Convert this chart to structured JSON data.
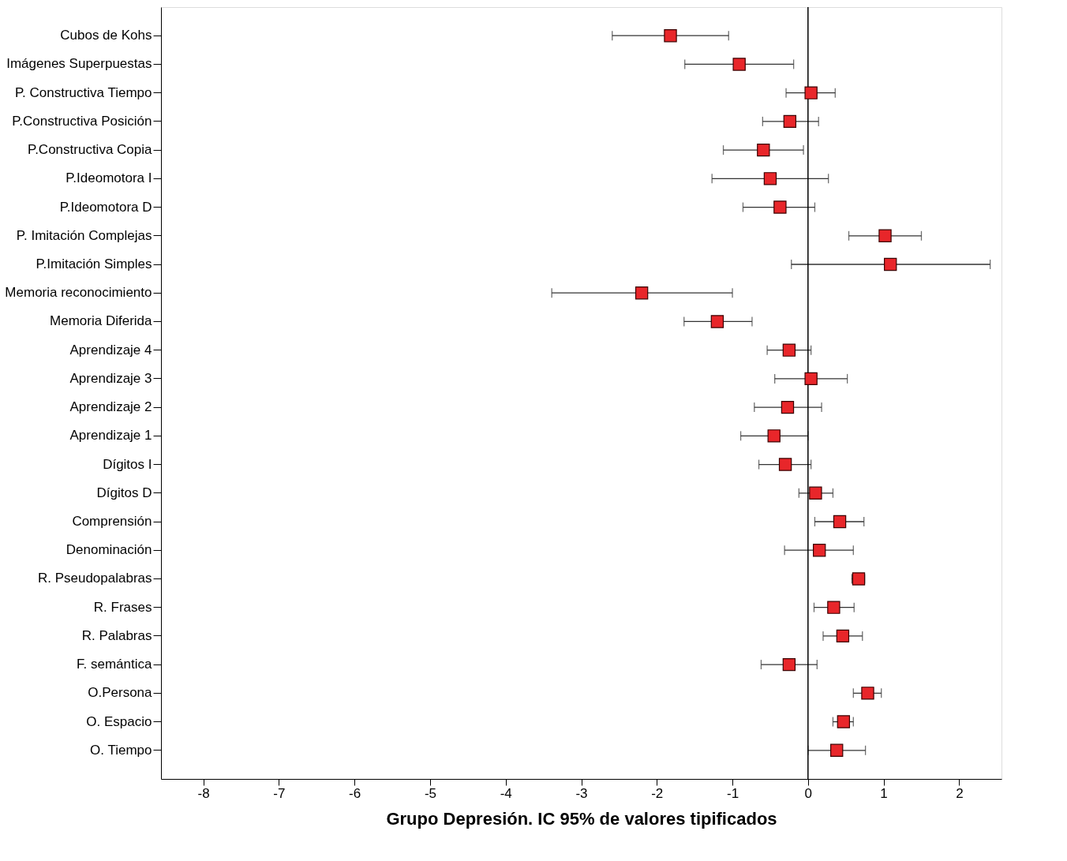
{
  "chart_data": {
    "type": "scatter",
    "orientation": "horizontal",
    "xlabel": "Grupo Depresión. IC 95% de valores tipificados",
    "categories": [
      "Cubos de Kohs",
      "Imágenes Superpuestas",
      "P. Constructiva Tiempo",
      "P.Constructiva Posición",
      "P.Constructiva Copia",
      "P.Ideomotora I",
      "P.Ideomotora D",
      "P. Imitación Complejas",
      "P.Imitación Simples",
      "Memoria reconocimiento",
      "Memoria Diferida",
      "Aprendizaje 4",
      "Aprendizaje 3",
      "Aprendizaje 2",
      "Aprendizaje 1",
      "Dígitos I",
      "Dígitos D",
      "Comprensión",
      "Denominación",
      "R. Pseudopalabras",
      "R. Frases",
      "R. Palabras",
      "F. semántica",
      "O.Persona",
      "O. Espacio",
      "O. Tiempo"
    ],
    "values": [
      -1.82,
      -0.91,
      0.04,
      -0.24,
      -0.59,
      -0.5,
      -0.37,
      1.02,
      1.09,
      -2.2,
      -1.2,
      -0.25,
      0.04,
      -0.27,
      -0.45,
      -0.3,
      0.1,
      0.42,
      0.15,
      0.67,
      0.34,
      0.46,
      -0.25,
      0.79,
      0.47,
      0.38
    ],
    "errors": [
      [
        -2.59,
        -1.05
      ],
      [
        -1.63,
        -0.19
      ],
      [
        -0.29,
        0.36
      ],
      [
        -0.6,
        0.14
      ],
      [
        -1.12,
        -0.06
      ],
      [
        -1.27,
        0.27
      ],
      [
        -0.86,
        0.09
      ],
      [
        0.54,
        1.5
      ],
      [
        -0.22,
        2.41
      ],
      [
        -3.39,
        -1.0
      ],
      [
        -1.64,
        -0.74
      ],
      [
        -0.54,
        0.04
      ],
      [
        -0.44,
        0.52
      ],
      [
        -0.71,
        0.18
      ],
      [
        -0.89,
        0.0
      ],
      [
        -0.65,
        0.04
      ],
      [
        -0.12,
        0.33
      ],
      [
        0.09,
        0.74
      ],
      [
        -0.31,
        0.6
      ],
      [
        0.58,
        0.75
      ],
      [
        0.08,
        0.61
      ],
      [
        0.2,
        0.72
      ],
      [
        -0.62,
        0.12
      ],
      [
        0.6,
        0.97
      ],
      [
        0.33,
        0.6
      ],
      [
        0.0,
        0.76
      ]
    ],
    "color": "#e8262a",
    "marker": "square",
    "xlim": [
      -8.56,
      2.56
    ],
    "xticks": [
      -8,
      -7,
      -6,
      -5,
      -4,
      -3,
      -2,
      -1,
      0,
      1,
      2
    ],
    "ref_lines": [
      {
        "axis": "x",
        "value": 0,
        "color": "#000000"
      }
    ],
    "grid": false
  }
}
